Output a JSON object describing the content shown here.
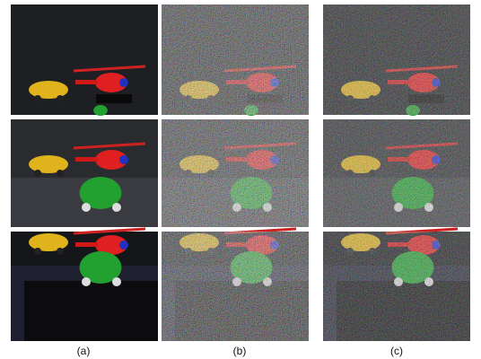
{
  "figure": {
    "captions": [
      "(a)",
      "(b)",
      "(c)"
    ]
  }
}
